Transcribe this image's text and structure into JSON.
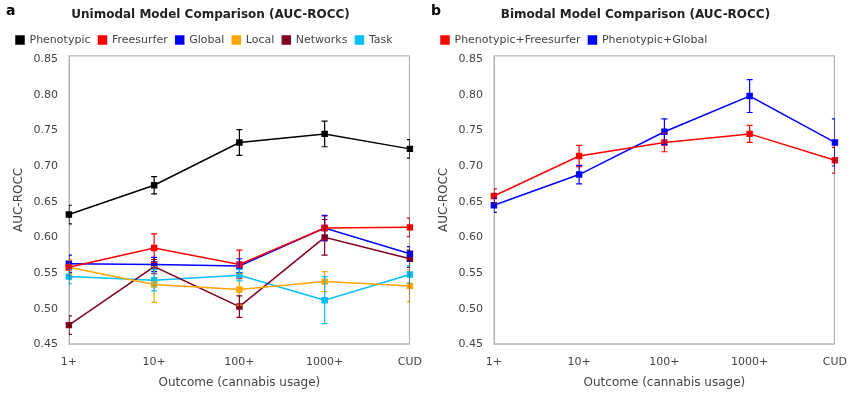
{
  "chart_data": [
    {
      "type": "line",
      "title": "Unimodal Model Comparison (AUC-ROCC)",
      "annotations": [
        "a"
      ],
      "xlabel": "Outcome (cannabis usage)",
      "ylabel": "AUC-ROCC",
      "categories": [
        "1+",
        "10+",
        "100+",
        "1000+",
        "CUD"
      ],
      "series": [
        {
          "name": "Phenotypic",
          "color": "#000000",
          "values": [
            0.632,
            0.673,
            0.733,
            0.745,
            0.724
          ],
          "yerr": [
            0.013,
            0.012,
            0.018,
            0.018,
            0.013
          ]
        },
        {
          "name": "Freesurfer",
          "color": "#ff0000",
          "values": [
            0.558,
            0.585,
            0.562,
            0.613,
            0.614
          ],
          "yerr": [
            0.01,
            0.02,
            0.02,
            0.017,
            0.013
          ]
        },
        {
          "name": "Global",
          "color": "#0000ff",
          "values": [
            0.563,
            0.562,
            0.56,
            0.613,
            0.577
          ],
          "yerr": [
            0.012,
            0.01,
            0.01,
            0.018,
            0.01
          ]
        },
        {
          "name": "Local",
          "color": "#ffa500",
          "values": [
            0.558,
            0.534,
            0.527,
            0.538,
            0.532
          ],
          "yerr": [
            0.01,
            0.025,
            0.022,
            0.014,
            0.022
          ]
        },
        {
          "name": "Networks",
          "color": "#800020",
          "values": [
            0.477,
            0.559,
            0.503,
            0.6,
            0.57
          ],
          "yerr": [
            0.013,
            0.01,
            0.015,
            0.025,
            0.012
          ]
        },
        {
          "name": "Task",
          "color": "#00bfff",
          "values": [
            0.545,
            0.54,
            0.547,
            0.512,
            0.548
          ],
          "yerr": [
            0.01,
            0.015,
            0.008,
            0.033,
            0.012
          ]
        }
      ],
      "marker": "square",
      "ylim": [
        0.45,
        0.855
      ],
      "yticks": [
        {
          "value": 0.45,
          "label": "0.45"
        },
        {
          "value": 0.5,
          "label": "0.50"
        },
        {
          "value": 0.55,
          "label": "0.55"
        },
        {
          "value": 0.6,
          "label": "0.60"
        },
        {
          "value": 0.65,
          "label": "0.65"
        },
        {
          "value": 0.7,
          "label": "0.70"
        },
        {
          "value": 0.75,
          "label": "0.75"
        },
        {
          "value": 0.8,
          "label": "0.80"
        },
        {
          "value": 0.85,
          "label": "0.85"
        }
      ],
      "grid": false,
      "legend": "upper left"
    },
    {
      "type": "line",
      "title": "Bimodal Model Comparison (AUC-ROCC)",
      "annotations": [
        "b"
      ],
      "xlabel": "Outcome (cannabis usage)",
      "ylabel": "AUC-ROCC",
      "categories": [
        "1+",
        "10+",
        "100+",
        "1000+",
        "CUD"
      ],
      "series": [
        {
          "name": "Phenotypic+Freesurfer",
          "color": "#ff0000",
          "values": [
            0.658,
            0.714,
            0.733,
            0.745,
            0.708
          ],
          "yerr": [
            0.01,
            0.015,
            0.013,
            0.012,
            0.018
          ]
        },
        {
          "name": "Phenotypic+Global",
          "color": "#0000ff",
          "values": [
            0.645,
            0.688,
            0.748,
            0.798,
            0.733
          ],
          "yerr": [
            0.01,
            0.013,
            0.018,
            0.023,
            0.033
          ]
        }
      ],
      "marker": "square",
      "ylim": [
        0.45,
        0.855
      ],
      "yticks": [
        {
          "value": 0.45,
          "label": "0.45"
        },
        {
          "value": 0.5,
          "label": "0.50"
        },
        {
          "value": 0.55,
          "label": "0.55"
        },
        {
          "value": 0.6,
          "label": "0.60"
        },
        {
          "value": 0.65,
          "label": "0.65"
        },
        {
          "value": 0.7,
          "label": "0.70"
        },
        {
          "value": 0.75,
          "label": "0.75"
        },
        {
          "value": 0.8,
          "label": "0.80"
        },
        {
          "value": 0.85,
          "label": "0.85"
        }
      ],
      "grid": false,
      "legend": "upper left"
    }
  ]
}
